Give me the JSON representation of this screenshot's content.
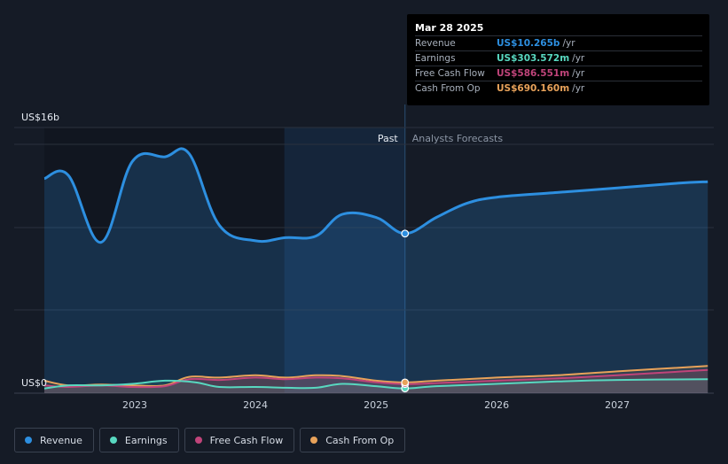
{
  "chart_data": {
    "type": "line",
    "y_axis": {
      "top_label": "US$16b",
      "bottom_label": "US$0",
      "ylim": [
        0,
        16
      ]
    },
    "x_tick_labels": [
      "2023",
      "2024",
      "2025",
      "2026",
      "2027"
    ],
    "section_labels": {
      "past": "Past",
      "forecast": "Analysts Forecasts"
    },
    "series": [
      {
        "name": "Revenue",
        "color": "#2d8fe0",
        "points": [
          [
            2022.25,
            13.8
          ],
          [
            2022.45,
            14.0
          ],
          [
            2022.72,
            9.7
          ],
          [
            2022.98,
            14.9
          ],
          [
            2023.25,
            15.2
          ],
          [
            2023.45,
            15.4
          ],
          [
            2023.7,
            10.8
          ],
          [
            2024.0,
            9.8
          ],
          [
            2024.25,
            10.0
          ],
          [
            2024.5,
            10.1
          ],
          [
            2024.72,
            11.5
          ],
          [
            2025.0,
            11.3
          ],
          [
            2025.24,
            10.265
          ],
          [
            2025.5,
            11.3
          ],
          [
            2025.75,
            12.2
          ],
          [
            2026.0,
            12.6
          ],
          [
            2026.5,
            12.9
          ],
          [
            2027.0,
            13.2
          ],
          [
            2027.5,
            13.5
          ],
          [
            2027.75,
            13.6
          ]
        ]
      },
      {
        "name": "Earnings",
        "color": "#58d8c0",
        "points": [
          [
            2022.25,
            0.3
          ],
          [
            2022.45,
            0.5
          ],
          [
            2022.72,
            0.5
          ],
          [
            2022.98,
            0.6
          ],
          [
            2023.25,
            0.8
          ],
          [
            2023.5,
            0.7
          ],
          [
            2023.7,
            0.4
          ],
          [
            2024.0,
            0.4
          ],
          [
            2024.25,
            0.35
          ],
          [
            2024.5,
            0.35
          ],
          [
            2024.72,
            0.6
          ],
          [
            2025.0,
            0.45
          ],
          [
            2025.24,
            0.3036
          ],
          [
            2025.5,
            0.45
          ],
          [
            2026.0,
            0.6
          ],
          [
            2026.5,
            0.75
          ],
          [
            2027.0,
            0.85
          ],
          [
            2027.75,
            0.9
          ]
        ]
      },
      {
        "name": "Free Cash Flow",
        "color": "#c0447a",
        "points": [
          [
            2022.25,
            0.5
          ],
          [
            2022.45,
            0.4
          ],
          [
            2022.72,
            0.5
          ],
          [
            2022.98,
            0.4
          ],
          [
            2023.25,
            0.45
          ],
          [
            2023.45,
            0.9
          ],
          [
            2023.7,
            0.85
          ],
          [
            2024.0,
            1.0
          ],
          [
            2024.25,
            0.9
          ],
          [
            2024.5,
            1.0
          ],
          [
            2024.72,
            0.95
          ],
          [
            2025.0,
            0.7
          ],
          [
            2025.24,
            0.5866
          ],
          [
            2025.5,
            0.65
          ],
          [
            2026.0,
            0.8
          ],
          [
            2026.5,
            0.95
          ],
          [
            2027.0,
            1.15
          ],
          [
            2027.75,
            1.5
          ]
        ]
      },
      {
        "name": "Cash From Op",
        "color": "#e8a25a",
        "points": [
          [
            2022.25,
            0.8
          ],
          [
            2022.45,
            0.5
          ],
          [
            2022.72,
            0.55
          ],
          [
            2022.98,
            0.5
          ],
          [
            2023.25,
            0.5
          ],
          [
            2023.45,
            1.05
          ],
          [
            2023.7,
            1.0
          ],
          [
            2024.0,
            1.15
          ],
          [
            2024.25,
            1.0
          ],
          [
            2024.5,
            1.15
          ],
          [
            2024.72,
            1.1
          ],
          [
            2025.0,
            0.8
          ],
          [
            2025.24,
            0.6902
          ],
          [
            2025.5,
            0.8
          ],
          [
            2026.0,
            1.0
          ],
          [
            2026.5,
            1.15
          ],
          [
            2027.0,
            1.4
          ],
          [
            2027.75,
            1.75
          ]
        ]
      }
    ],
    "past_forecast_split": 2025.24,
    "highlight_band": [
      2024.24,
      2025.24
    ],
    "grid": true
  },
  "tooltip": {
    "date": "Mar 28 2025",
    "rows": [
      {
        "label": "Revenue",
        "value": "US$10.265b",
        "unit": "/yr",
        "color": "#2d8fe0"
      },
      {
        "label": "Earnings",
        "value": "US$303.572m",
        "unit": "/yr",
        "color": "#58d8c0"
      },
      {
        "label": "Free Cash Flow",
        "value": "US$586.551m",
        "unit": "/yr",
        "color": "#c0447a"
      },
      {
        "label": "Cash From Op",
        "value": "US$690.160m",
        "unit": "/yr",
        "color": "#e8a25a"
      }
    ]
  },
  "legend": [
    {
      "label": "Revenue",
      "color": "#2d8fe0"
    },
    {
      "label": "Earnings",
      "color": "#58d8c0"
    },
    {
      "label": "Free Cash Flow",
      "color": "#c0447a"
    },
    {
      "label": "Cash From Op",
      "color": "#e8a25a"
    }
  ]
}
